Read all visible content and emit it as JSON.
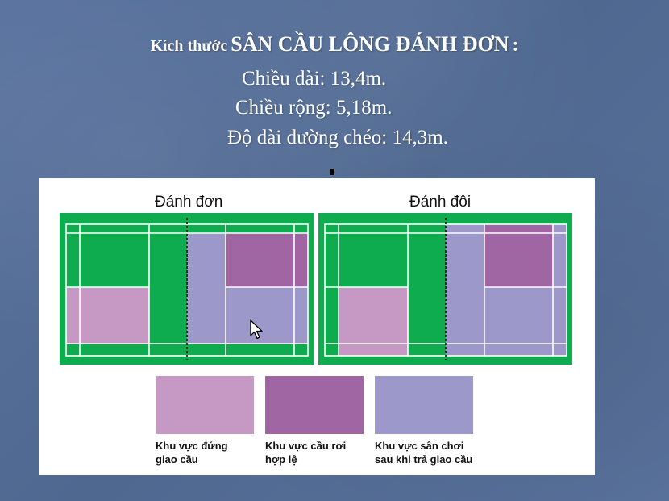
{
  "title": {
    "lead": "Kích thước",
    "main": "SÂN CẦU LÔNG ĐÁNH ĐƠN",
    "colon": ":"
  },
  "lines": {
    "length": "Chiều dài: 13,4m.",
    "width": "Chiều rộng: 5,18m.",
    "diagonal": "Độ dài đường chéo: 14,3m."
  },
  "diagram": {
    "singles_label": "Đánh đơn",
    "doubles_label": "Đánh đôi",
    "legend": [
      {
        "line1": "Khu vực đứng",
        "line2": "giao cầu",
        "color": "#c599c3"
      },
      {
        "line1": "Khu vực cầu rơi",
        "line2": "hợp lệ",
        "color": "#a066a4"
      },
      {
        "line1": "Khu vực sân chơi",
        "line2": "sau khi trả giao cầu",
        "color": "#9c98c9"
      }
    ]
  },
  "colors": {
    "court_green": "#0fab4f",
    "serve_stand": "#c599c3",
    "serve_landing": "#a066a4",
    "play_area": "#9c98c9",
    "court_lines": "#ffffff"
  }
}
